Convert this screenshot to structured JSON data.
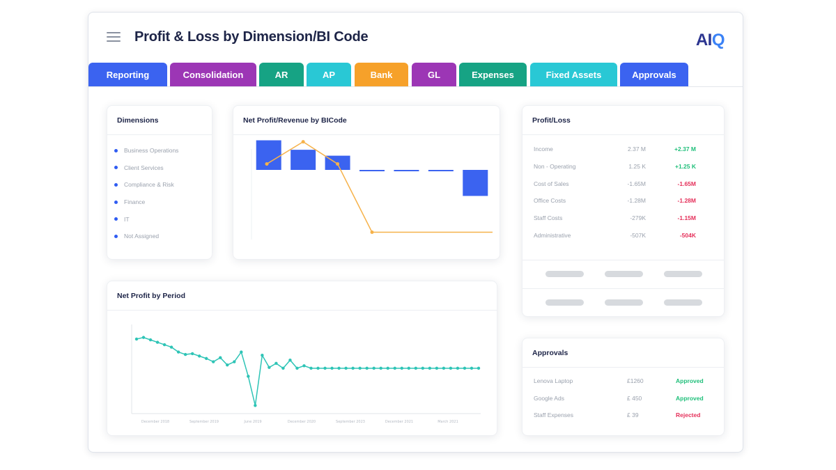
{
  "header": {
    "title": "Profit & Loss by Dimension/BI Code",
    "logo": {
      "part1": "AI",
      "part2": "Q"
    }
  },
  "tabs": [
    {
      "label": "Reporting",
      "color": "#3b63f0"
    },
    {
      "label": "Consolidation",
      "color": "#9c36b5"
    },
    {
      "label": "AR",
      "color": "#16a384"
    },
    {
      "label": "AP",
      "color": "#29c8d5"
    },
    {
      "label": "Bank",
      "color": "#f6a12a"
    },
    {
      "label": "GL",
      "color": "#9c36b5"
    },
    {
      "label": "Expenses",
      "color": "#16a384"
    },
    {
      "label": "Fixed Assets",
      "color": "#29c8d5"
    },
    {
      "label": "Approvals",
      "color": "#3b63f0"
    }
  ],
  "dimensions": {
    "title": "Dimensions",
    "items": [
      "Business Operations",
      "Client Services",
      "Compliance & Risk",
      "Finance",
      "IT",
      "Not Assigned"
    ]
  },
  "net_profit_revenue": {
    "title": "Net Profit/Revenue by BICode"
  },
  "net_profit_period": {
    "title": "Net Profit by Period"
  },
  "profit_loss": {
    "title": "Profit/Loss",
    "rows": [
      {
        "label": "Income",
        "value": "2.37 M",
        "change": "+2.37 M",
        "trend": "pos"
      },
      {
        "label": "Non - Operating",
        "value": "1.25 K",
        "change": "+1.25 K",
        "trend": "pos"
      },
      {
        "label": "Cost of Sales",
        "value": "-1.65M",
        "change": "-1.65M",
        "trend": "neg"
      },
      {
        "label": "Office Costs",
        "value": "-1.28M",
        "change": "-1.28M",
        "trend": "neg"
      },
      {
        "label": "Staff Costs",
        "value": "-279K",
        "change": "-1.15M",
        "trend": "neg"
      },
      {
        "label": "Administrative",
        "value": "-507K",
        "change": "-504K",
        "trend": "neg"
      }
    ]
  },
  "approvals": {
    "title": "Approvals",
    "rows": [
      {
        "label": "Lenova Laptop",
        "amount": "£1260",
        "status": "Approved"
      },
      {
        "label": "Google Ads",
        "amount": "£ 450",
        "status": "Approved"
      },
      {
        "label": "Staff Expenses",
        "amount": "£ 39",
        "status": "Rejected"
      }
    ]
  },
  "colors": {
    "bar": "#3b63f0",
    "line_orange": "#f6b24a",
    "line_teal": "#2ec4b6"
  },
  "chart_data": [
    {
      "type": "bar",
      "chart": "net_profit_revenue",
      "categories": [
        "",
        "",
        "",
        "",
        "",
        "",
        ""
      ],
      "series": [
        {
          "type": "bar",
          "values": [
            -1.25,
            -0.85,
            -0.6,
            0.05,
            0.05,
            0.05,
            -1.1
          ]
        },
        {
          "type": "line",
          "values": [
            -0.35,
            -0.95,
            -0.35,
            1.5,
            1.5,
            1.5,
            1.5
          ]
        }
      ],
      "yticks": [
        "",
        "",
        "",
        ""
      ]
    },
    {
      "type": "line",
      "chart": "net_profit_period",
      "xlabels": [
        "December 2018",
        "September 2019",
        "June 2019",
        "December 2020",
        "September 2023",
        "December 2021",
        "March 2021"
      ],
      "series": [
        {
          "values": [
            560,
            570,
            555,
            540,
            525,
            510,
            480,
            465,
            470,
            455,
            440,
            420,
            445,
            400,
            420,
            480,
            330,
            150,
            460,
            385,
            410,
            380,
            430,
            380,
            395,
            380,
            380,
            380,
            380,
            380,
            380,
            380,
            380,
            380,
            380,
            380,
            380,
            380,
            380,
            380,
            380,
            380,
            380,
            380,
            380,
            380,
            380,
            380,
            380,
            380
          ]
        }
      ],
      "yticks": [
        "",
        "",
        "",
        "",
        ""
      ],
      "ylim": [
        100,
        650
      ]
    }
  ]
}
